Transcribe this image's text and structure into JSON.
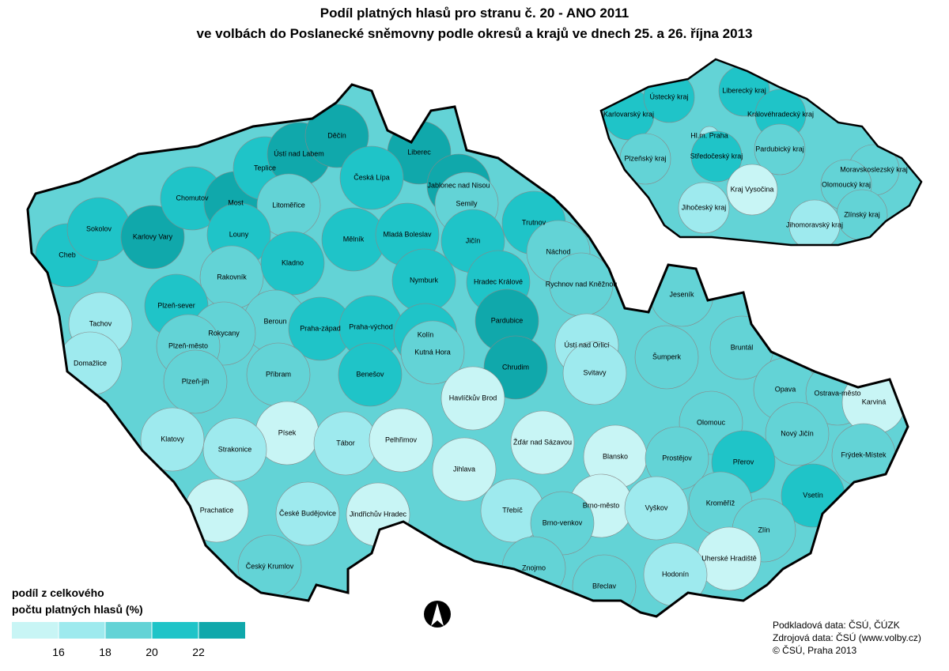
{
  "title": [
    "Podíl platných hlasů pro stranu č. 20 - ANO 2011",
    "ve volbách do Poslanecké sněmovny podle okresů a krajů ve dnech 25. a 26. října 2013"
  ],
  "districts": [
    {
      "name": "Cheb",
      "color": "#1fc4c8"
    },
    {
      "name": "Sokolov",
      "color": "#1fc4c8"
    },
    {
      "name": "Karlovy Vary",
      "color": "#10a8ab"
    },
    {
      "name": "Chomutov",
      "color": "#1fc4c8"
    },
    {
      "name": "Most",
      "color": "#10a8ab"
    },
    {
      "name": "Teplice",
      "color": "#1fc4c8"
    },
    {
      "name": "Ústí nad Labem",
      "color": "#10a8ab"
    },
    {
      "name": "Děčín",
      "color": "#10a8ab"
    },
    {
      "name": "Liberec",
      "color": "#10a8ab"
    },
    {
      "name": "Jablonec nad Nisou",
      "color": "#10a8ab"
    },
    {
      "name": "Česká Lípa",
      "color": "#1fc4c8"
    },
    {
      "name": "Litoměřice",
      "color": "#63d3d6"
    },
    {
      "name": "Louny",
      "color": "#1fc4c8"
    },
    {
      "name": "Semily",
      "color": "#63d3d6"
    },
    {
      "name": "Mělník",
      "color": "#1fc4c8"
    },
    {
      "name": "Mladá Boleslav",
      "color": "#1fc4c8"
    },
    {
      "name": "Jičín",
      "color": "#1fc4c8"
    },
    {
      "name": "Trutnov",
      "color": "#1fc4c8"
    },
    {
      "name": "Náchod",
      "color": "#63d3d6"
    },
    {
      "name": "Rakovník",
      "color": "#63d3d6"
    },
    {
      "name": "Kladno",
      "color": "#1fc4c8"
    },
    {
      "name": "Nymburk",
      "color": "#1fc4c8"
    },
    {
      "name": "Hradec Králové",
      "color": "#1fc4c8"
    },
    {
      "name": "Rychnov nad Kněžnou",
      "color": "#63d3d6"
    },
    {
      "name": "Plzeň-sever",
      "color": "#1fc4c8"
    },
    {
      "name": "Tachov",
      "color": "#9eeaee"
    },
    {
      "name": "Beroun",
      "color": "#63d3d6"
    },
    {
      "name": "Praha-západ",
      "color": "#1fc4c8"
    },
    {
      "name": "Praha-východ",
      "color": "#1fc4c8"
    },
    {
      "name": "Kolín",
      "color": "#1fc4c8"
    },
    {
      "name": "Pardubice",
      "color": "#10a8ab"
    },
    {
      "name": "Rokycany",
      "color": "#63d3d6"
    },
    {
      "name": "Plzeň-město",
      "color": "#63d3d6"
    },
    {
      "name": "Ústí nad Orlicí",
      "color": "#9eeaee"
    },
    {
      "name": "Kutná Hora",
      "color": "#63d3d6"
    },
    {
      "name": "Chrudim",
      "color": "#10a8ab"
    },
    {
      "name": "Šumperk",
      "color": "#63d3d6"
    },
    {
      "name": "Jeseník",
      "color": "#63d3d6"
    },
    {
      "name": "Bruntál",
      "color": "#63d3d6"
    },
    {
      "name": "Domažlice",
      "color": "#9eeaee"
    },
    {
      "name": "Příbram",
      "color": "#63d3d6"
    },
    {
      "name": "Benešov",
      "color": "#1fc4c8"
    },
    {
      "name": "Plzeň-jih",
      "color": "#63d3d6"
    },
    {
      "name": "Svitavy",
      "color": "#9eeaee"
    },
    {
      "name": "Havlíčkův Brod",
      "color": "#c8f5f5"
    },
    {
      "name": "Opava",
      "color": "#63d3d6"
    },
    {
      "name": "Ostrava-město",
      "color": "#63d3d6"
    },
    {
      "name": "Karviná",
      "color": "#c8f5f5"
    },
    {
      "name": "Olomouc",
      "color": "#63d3d6"
    },
    {
      "name": "Nový Jičín",
      "color": "#63d3d6"
    },
    {
      "name": "Frýdek-Místek",
      "color": "#63d3d6"
    },
    {
      "name": "Klatovy",
      "color": "#9eeaee"
    },
    {
      "name": "Písek",
      "color": "#c8f5f5"
    },
    {
      "name": "Tábor",
      "color": "#9eeaee"
    },
    {
      "name": "Pelhřimov",
      "color": "#c8f5f5"
    },
    {
      "name": "Žďár nad Sázavou",
      "color": "#c8f5f5"
    },
    {
      "name": "Blansko",
      "color": "#c8f5f5"
    },
    {
      "name": "Strakonice",
      "color": "#9eeaee"
    },
    {
      "name": "Prostějov",
      "color": "#63d3d6"
    },
    {
      "name": "Přerov",
      "color": "#1fc4c8"
    },
    {
      "name": "Vsetín",
      "color": "#1fc4c8"
    },
    {
      "name": "Jihlava",
      "color": "#c8f5f5"
    },
    {
      "name": "Prachatice",
      "color": "#c8f5f5"
    },
    {
      "name": "České Budějovice",
      "color": "#9eeaee"
    },
    {
      "name": "Jindřichův Hradec",
      "color": "#c8f5f5"
    },
    {
      "name": "Třebíč",
      "color": "#9eeaee"
    },
    {
      "name": "Brno-město",
      "color": "#c8f5f5"
    },
    {
      "name": "Brno-venkov",
      "color": "#63d3d6"
    },
    {
      "name": "Vyškov",
      "color": "#9eeaee"
    },
    {
      "name": "Kroměříž",
      "color": "#63d3d6"
    },
    {
      "name": "Zlín",
      "color": "#63d3d6"
    },
    {
      "name": "Uherské Hradiště",
      "color": "#c8f5f5"
    },
    {
      "name": "Hodonín",
      "color": "#9eeaee"
    },
    {
      "name": "Znojmo",
      "color": "#63d3d6"
    },
    {
      "name": "Břeclav",
      "color": "#63d3d6"
    },
    {
      "name": "Český Krumlov",
      "color": "#63d3d6"
    }
  ],
  "regions": [
    {
      "name": "Karlovarský kraj",
      "color": "#1fc4c8"
    },
    {
      "name": "Ústecký kraj",
      "color": "#1fc4c8"
    },
    {
      "name": "Liberecký kraj",
      "color": "#1fc4c8"
    },
    {
      "name": "Královéhradecký kraj",
      "color": "#1fc4c8"
    },
    {
      "name": "Hl.m. Praha",
      "color": "#9eeaee"
    },
    {
      "name": "Středočeský kraj",
      "color": "#1fc4c8"
    },
    {
      "name": "Plzeňský kraj",
      "color": "#63d3d6"
    },
    {
      "name": "Pardubický kraj",
      "color": "#63d3d6"
    },
    {
      "name": "Moravskoslezský kraj",
      "color": "#63d3d6"
    },
    {
      "name": "Olomoucký kraj",
      "color": "#63d3d6"
    },
    {
      "name": "Kraj Vysočina",
      "color": "#c8f5f5"
    },
    {
      "name": "Jihočeský kraj",
      "color": "#9eeaee"
    },
    {
      "name": "Zlínský kraj",
      "color": "#63d3d6"
    },
    {
      "name": "Jihomoravský kraj",
      "color": "#9eeaee"
    }
  ],
  "legend": {
    "title": [
      "podíl z celkového",
      "počtu platných hlasů (%)"
    ],
    "colors": [
      "#c8f5f5",
      "#9eeaee",
      "#63d3d6",
      "#1fc4c8",
      "#10a8ab"
    ],
    "ticks": [
      16,
      18,
      20,
      22
    ]
  },
  "sources": [
    "Podkladová data: ČSÚ, ČÚZK",
    "Zdrojová data: ČSÚ (www.volby.cz)",
    "© ČSÚ, Praha 2013"
  ]
}
